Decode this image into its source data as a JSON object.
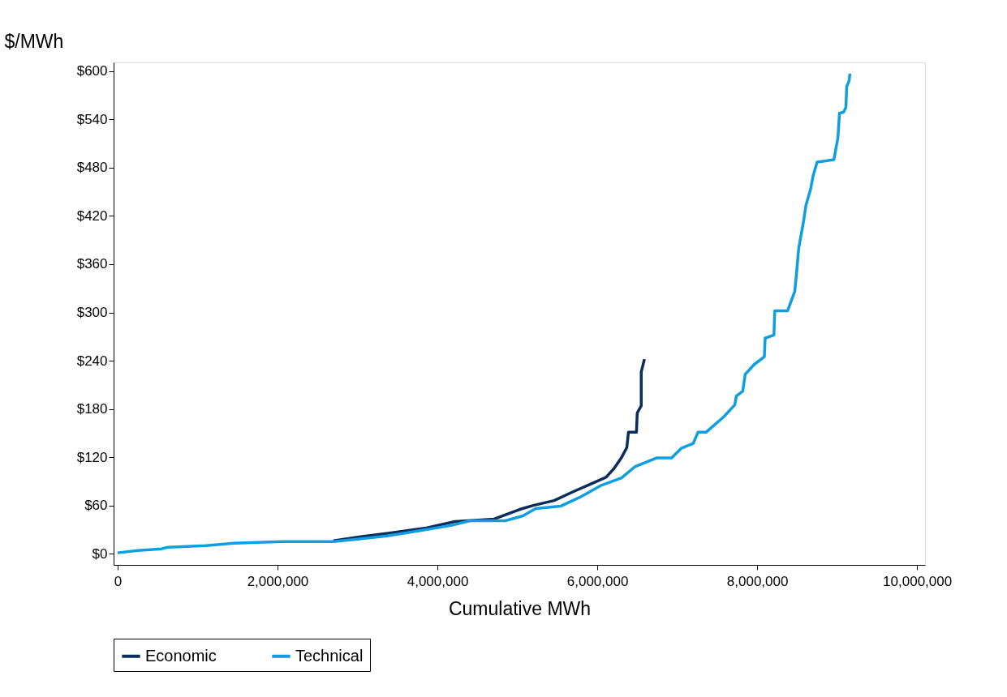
{
  "chart_data": {
    "type": "line",
    "xlabel": "Cumulative MWh",
    "ylabel": "$/MWh",
    "xlim": [
      -50000,
      10100000
    ],
    "ylim": [
      -14,
      611
    ],
    "xticks": [
      {
        "value": 0,
        "label": "0"
      },
      {
        "value": 2000000,
        "label": "2,000,000"
      },
      {
        "value": 4000000,
        "label": "4,000,000"
      },
      {
        "value": 6000000,
        "label": "6,000,000"
      },
      {
        "value": 8000000,
        "label": "8,000,000"
      },
      {
        "value": 10000000,
        "label": "10,000,000"
      }
    ],
    "yticks": [
      {
        "value": 0,
        "label": "$0"
      },
      {
        "value": 60,
        "label": "$60"
      },
      {
        "value": 120,
        "label": "$120"
      },
      {
        "value": 180,
        "label": "$180"
      },
      {
        "value": 240,
        "label": "$240"
      },
      {
        "value": 300,
        "label": "$300"
      },
      {
        "value": 360,
        "label": "$360"
      },
      {
        "value": 420,
        "label": "$420"
      },
      {
        "value": 480,
        "label": "$480"
      },
      {
        "value": 540,
        "label": "$540"
      },
      {
        "value": 600,
        "label": "$600"
      }
    ],
    "grid": false,
    "legend": "bottom",
    "marker": "none",
    "line_style": "solid",
    "series": [
      {
        "name": "Economic",
        "color": "#0b2d5b",
        "x": [
          2700000,
          3040000,
          3440000,
          3860000,
          4220000,
          4710000,
          5030000,
          5200000,
          5460000,
          5720000,
          5880000,
          6110000,
          6210000,
          6300000,
          6370000,
          6390000,
          6490000,
          6500000,
          6550000,
          6550000,
          6590000
        ],
        "values": [
          16,
          21,
          26,
          32,
          40,
          43,
          55,
          60,
          66,
          78,
          85,
          95,
          106,
          119,
          132,
          151,
          151,
          175,
          184,
          226,
          242
        ]
      },
      {
        "name": "Technical",
        "color": "#0f9ee0",
        "x": [
          0,
          250000,
          550000,
          630000,
          1100000,
          1450000,
          2060000,
          2700000,
          3000000,
          3370000,
          3750000,
          4170000,
          4410000,
          4850000,
          5070000,
          5230000,
          5540000,
          5780000,
          6050000,
          6300000,
          6470000,
          6740000,
          6930000,
          7050000,
          7200000,
          7260000,
          7360000,
          7580000,
          7720000,
          7740000,
          7820000,
          7850000,
          7960000,
          8090000,
          8100000,
          8210000,
          8220000,
          8380000,
          8470000,
          8490000,
          8520000,
          8580000,
          8610000,
          8670000,
          8700000,
          8750000,
          8960000,
          8980000,
          9010000,
          9030000,
          9080000,
          9110000,
          9120000,
          9150000,
          9160000
        ],
        "values": [
          1,
          4,
          6,
          8,
          10,
          13,
          15,
          15,
          18,
          22,
          28,
          35,
          41,
          41,
          47,
          56,
          59,
          70,
          85,
          94,
          108,
          119,
          119,
          131,
          137,
          151,
          151,
          170,
          185,
          196,
          202,
          223,
          235,
          245,
          268,
          272,
          302,
          302,
          326,
          346,
          380,
          413,
          433,
          454,
          470,
          487,
          490,
          501,
          517,
          548,
          549,
          555,
          581,
          588,
          597
        ]
      }
    ]
  }
}
